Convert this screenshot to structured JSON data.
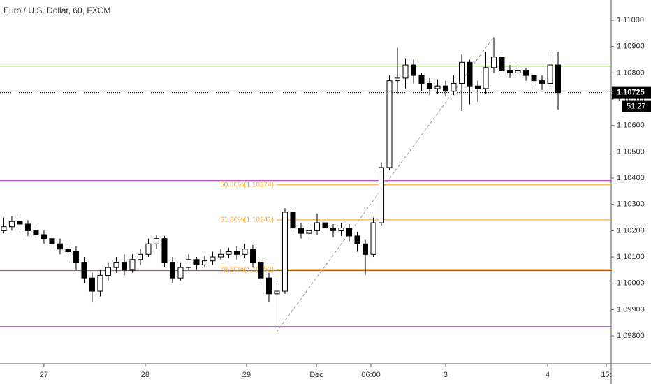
{
  "chart_data": {
    "type": "candlestick",
    "title": "Euro / U.S. Dollar, 60, FXCM",
    "up_color": "#ffffff",
    "down_color": "#000000",
    "open": [
      1.102,
      1.10215,
      1.10235,
      1.10225,
      1.102,
      1.10185,
      1.1017,
      1.1015,
      1.1013,
      1.1012,
      1.1008,
      1.1002,
      1.0997,
      1.1003,
      1.1006,
      1.1008,
      1.1005,
      1.1009,
      1.1011,
      1.1015,
      1.1017,
      1.1008,
      1.1002,
      1.1006,
      1.1009,
      1.1007,
      1.10085,
      1.101,
      1.1011,
      1.1012,
      1.1011,
      1.1013,
      1.1008,
      1.1002,
      1.0996,
      1.0997,
      1.1027,
      1.1021,
      1.1019,
      1.102,
      1.1023,
      1.1021,
      1.102,
      1.1021,
      1.1018,
      1.1015,
      1.1011,
      1.1023,
      1.1044,
      1.1077,
      1.1078,
      1.1083,
      1.1079,
      1.1076,
      1.1074,
      1.1075,
      1.1073,
      1.1076,
      1.1084,
      1.1075,
      1.1074,
      1.1082,
      1.1086,
      1.1081,
      1.108,
      1.1081,
      1.1079,
      1.1077,
      1.1076,
      1.1083
    ],
    "high": [
      1.1025,
      1.10255,
      1.1025,
      1.1024,
      1.10215,
      1.102,
      1.10185,
      1.1017,
      1.1015,
      1.1014,
      1.101,
      1.1004,
      1.1005,
      1.1008,
      1.101,
      1.1011,
      1.1011,
      1.1013,
      1.1017,
      1.10185,
      1.1018,
      1.101,
      1.1008,
      1.1011,
      1.101,
      1.10105,
      1.1012,
      1.1013,
      1.10135,
      1.1014,
      1.1015,
      1.10145,
      1.10095,
      1.1004,
      1.1,
      1.10285,
      1.1028,
      1.1023,
      1.1022,
      1.10265,
      1.1024,
      1.10225,
      1.1023,
      1.10225,
      1.10195,
      1.10165,
      1.1025,
      1.1046,
      1.1079,
      1.10895,
      1.10855,
      1.1085,
      1.108,
      1.1078,
      1.10775,
      1.1077,
      1.1079,
      1.1087,
      1.1085,
      1.1077,
      1.1088,
      1.10935,
      1.1088,
      1.1083,
      1.10825,
      1.1082,
      1.108,
      1.1079,
      1.1088,
      1.1088
    ],
    "low": [
      1.1019,
      1.102,
      1.10205,
      1.1018,
      1.10165,
      1.1015,
      1.1013,
      1.1011,
      1.1008,
      1.1005,
      1.1,
      1.0993,
      1.0995,
      1.1001,
      1.1004,
      1.1003,
      1.1004,
      1.1007,
      1.101,
      1.1013,
      1.1006,
      1.1,
      1.1001,
      1.1005,
      1.1005,
      1.1006,
      1.1007,
      1.1009,
      1.10095,
      1.1009,
      1.10095,
      1.1006,
      1.1,
      1.0993,
      1.09815,
      1.0996,
      1.1019,
      1.1017,
      1.1017,
      1.10185,
      1.10185,
      1.10175,
      1.1018,
      1.1016,
      1.1012,
      1.1003,
      1.101,
      1.1022,
      1.1043,
      1.1072,
      1.1074,
      1.1076,
      1.1073,
      1.10715,
      1.1072,
      1.1071,
      1.10715,
      1.10655,
      1.1068,
      1.1069,
      1.1072,
      1.108,
      1.1079,
      1.1078,
      1.1079,
      1.1077,
      1.1074,
      1.10735,
      1.1074,
      1.1066
    ],
    "close": [
      1.10215,
      1.10235,
      1.10225,
      1.102,
      1.10185,
      1.1017,
      1.1015,
      1.1013,
      1.1012,
      1.1008,
      1.1002,
      1.0997,
      1.1003,
      1.1006,
      1.1008,
      1.1005,
      1.1009,
      1.1011,
      1.1015,
      1.1017,
      1.1008,
      1.1002,
      1.1006,
      1.1009,
      1.1007,
      1.10085,
      1.101,
      1.1011,
      1.1012,
      1.1011,
      1.1013,
      1.1008,
      1.1002,
      1.0996,
      1.0997,
      1.1027,
      1.1021,
      1.1019,
      1.102,
      1.1023,
      1.1021,
      1.102,
      1.1021,
      1.1018,
      1.1015,
      1.1011,
      1.1023,
      1.1044,
      1.1077,
      1.1078,
      1.1083,
      1.1079,
      1.1076,
      1.1074,
      1.1075,
      1.1073,
      1.1076,
      1.1084,
      1.1075,
      1.1074,
      1.1082,
      1.1086,
      1.1081,
      1.108,
      1.1081,
      1.1079,
      1.1077,
      1.1076,
      1.1083,
      1.10725
    ],
    "xlim": [
      -0.43,
      75.65
    ],
    "xticks": [
      {
        "value": 5.04,
        "label": "27"
      },
      {
        "value": 17.65,
        "label": "28"
      },
      {
        "value": 30.26,
        "label": "29"
      },
      {
        "value": 38.96,
        "label": "Dec"
      },
      {
        "value": 45.74,
        "label": "06:00"
      },
      {
        "value": 55.04,
        "label": "3"
      },
      {
        "value": 67.74,
        "label": "4"
      },
      {
        "value": 75.04,
        "label": "15:"
      }
    ],
    "ylim": [
      1.09694,
      1.11077
    ],
    "yticks": [
      {
        "value": 1.098,
        "label": "1.09800"
      },
      {
        "value": 1.099,
        "label": "1.09900"
      },
      {
        "value": 1.1,
        "label": "1.10000"
      },
      {
        "value": 1.101,
        "label": "1.10100"
      },
      {
        "value": 1.102,
        "label": "1.10200"
      },
      {
        "value": 1.103,
        "label": "1.10300"
      },
      {
        "value": 1.104,
        "label": "1.10400"
      },
      {
        "value": 1.105,
        "label": "1.10500"
      },
      {
        "value": 1.106,
        "label": "1.10600"
      },
      {
        "value": 1.107,
        "label": "1.10700"
      },
      {
        "value": 1.108,
        "label": "1.10800"
      },
      {
        "value": 1.109,
        "label": "1.10900"
      },
      {
        "value": 1.11,
        "label": "1.11000"
      }
    ],
    "hlines": [
      {
        "value": 1.10825,
        "color": "#8bc34a"
      },
      {
        "value": 1.1039,
        "color": "#9c27b0"
      },
      {
        "value": 1.10048,
        "color": "#d32f2f"
      },
      {
        "value": 1.09835,
        "color": "#7b1fa2"
      }
    ],
    "fib_levels": [
      {
        "value": 1.10374,
        "label": "50.00%(1.10374)",
        "color": "#ffa726"
      },
      {
        "value": 1.10241,
        "label": "61.80%(1.10241)",
        "color": "#ffa726"
      },
      {
        "value": 1.10052,
        "label": "78.60%(1.10052)",
        "color": "#ffa726"
      }
    ],
    "trendline": {
      "x": [
        34,
        61
      ],
      "y": [
        1.09815,
        1.10935
      ]
    },
    "last_price": {
      "value": 1.10725,
      "label": "1.10725"
    },
    "countdown": "51:27"
  }
}
